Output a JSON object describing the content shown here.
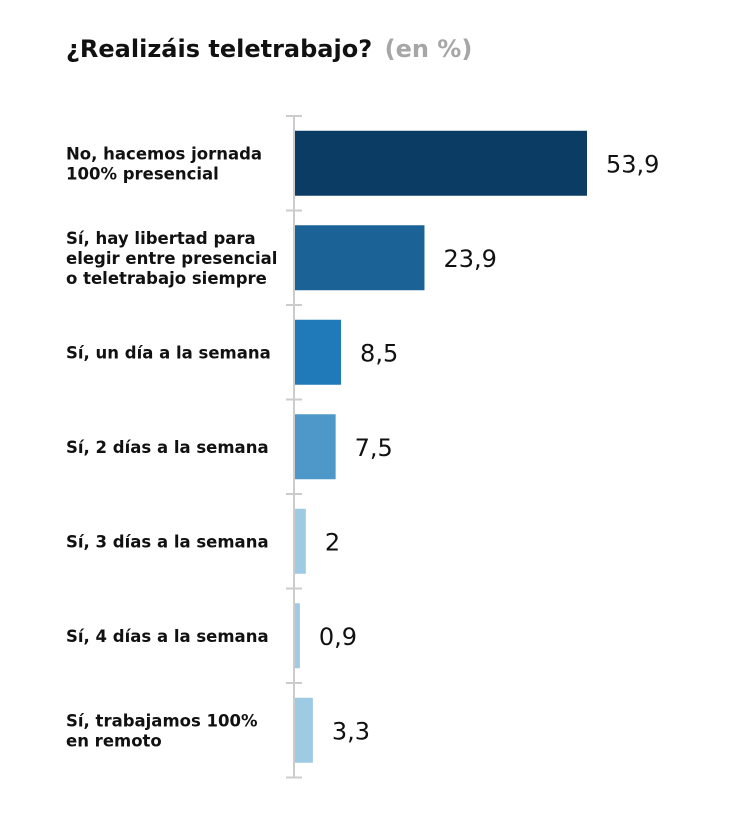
{
  "chart_data": {
    "type": "bar",
    "orientation": "horizontal",
    "title": "¿Realizáis teletrabajo?",
    "unit_label": "(en %)",
    "categories": [
      [
        "No, hacemos jornada",
        "100% presencial"
      ],
      [
        "Sí, hay libertad para",
        "elegir entre presencial",
        "o teletrabajo siempre"
      ],
      [
        "Sí, un día a la semana"
      ],
      [
        "Sí, 2 días a la semana"
      ],
      [
        "Sí, 3 días a la semana"
      ],
      [
        "Sí, 4 días a la semana"
      ],
      [
        "Sí, trabajamos 100%",
        "en remoto"
      ]
    ],
    "values": [
      53.9,
      23.9,
      8.5,
      7.5,
      2,
      0.9,
      3.3
    ],
    "value_labels": [
      "53,9",
      "23,9",
      "8,5",
      "7,5",
      "2",
      "0,9",
      "3,3"
    ],
    "colors": [
      "#0b3c64",
      "#1b6296",
      "#2079b8",
      "#4d98c8",
      "#9fcae4",
      "#9fcae4",
      "#9fcae4"
    ],
    "axis_color": "#cccccc",
    "xlim": [
      0,
      55
    ],
    "grid": false
  }
}
